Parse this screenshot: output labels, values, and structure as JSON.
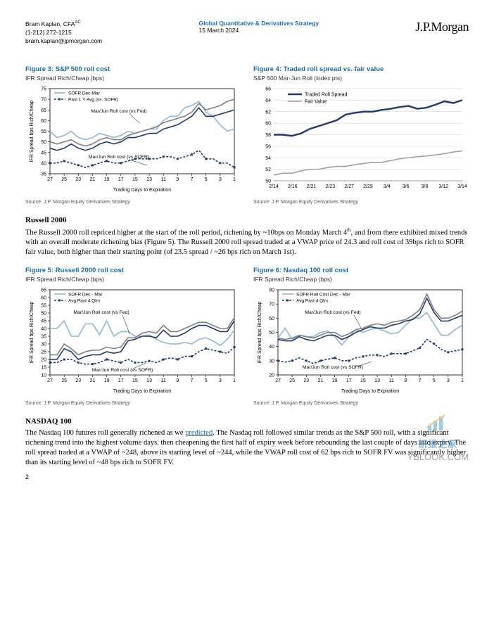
{
  "header": {
    "author": "Bram Kaplan, CFA",
    "author_sup": "AC",
    "phone": "(1-212) 272-1215",
    "email": "bram.kaplan@jpmorgan.com",
    "center1": "Global Quantitative & Derivatives Strategy",
    "center_date": "15 March 2024",
    "logo": "J.P.Morgan"
  },
  "fig3": {
    "title": "Figure 3: S&P 500 roll cost",
    "sub": "IFR Spread Rich/Cheap (bps)",
    "legend": [
      "SOFR Dec-Mar",
      "Past 1 Y Avg (vs. SOFR)"
    ],
    "annot1": "Mar/Jun Roll cost (vs Fed)",
    "annot2": "Mar/Jun Roll cost (vs SOFR)",
    "xlabel": "Trading Days to Expiration",
    "ylabel": "IFR Spread bps Rich/Cheap",
    "ylim": [
      35,
      75
    ],
    "ytick_step": 5,
    "xvals": [
      27,
      26,
      25,
      24,
      23,
      22,
      21,
      20,
      19,
      18,
      17,
      16,
      15,
      14,
      13,
      12,
      11,
      10,
      9,
      8,
      7,
      6,
      5,
      4,
      3,
      2,
      1
    ],
    "xticks": [
      27,
      25,
      23,
      21,
      19,
      17,
      15,
      13,
      11,
      9,
      7,
      5,
      3,
      1
    ],
    "series": {
      "light": [
        55,
        52,
        53,
        55,
        52,
        51,
        52,
        54,
        53,
        52,
        53,
        55,
        54,
        55,
        56,
        56,
        60,
        62,
        62,
        66,
        67,
        69,
        64,
        62,
        58,
        55,
        56
      ],
      "midgrey": [
        50,
        49,
        50,
        51,
        49,
        48,
        49,
        51,
        52,
        51,
        51,
        53,
        54,
        55,
        56,
        57,
        59,
        60,
        61,
        62,
        64,
        68,
        65,
        66,
        67,
        69,
        70
      ],
      "navy": [
        47,
        46,
        47,
        49,
        47,
        46,
        47,
        49,
        50,
        49,
        50,
        52,
        52,
        53,
        54,
        54,
        56,
        57,
        58,
        60,
        62,
        66,
        62,
        62,
        63,
        64,
        65
      ],
      "dash": [
        40,
        40,
        41,
        40,
        39,
        38,
        39,
        40,
        41,
        40,
        40,
        41,
        42,
        42,
        42,
        42,
        43,
        43,
        42,
        43,
        44,
        46,
        42,
        42,
        40,
        40,
        38
      ]
    },
    "colors": {
      "light": "#8fb7d6",
      "midgrey": "#808080",
      "navy": "#1f3a6e",
      "dash": "#1f3a6e"
    },
    "line_width": 1.6,
    "dash_pattern": "3,2",
    "title_fontsize": 9.5,
    "label_fontsize": 7,
    "tick_fontsize": 7,
    "bg": "#ffffff",
    "axis_color": "#000"
  },
  "fig4": {
    "title": "Figure 4: Traded roll spread vs. fair value",
    "sub": "S&P 500 Mar-Jun Roll (index pts)",
    "legend": [
      "Traded Roll Spread",
      "Fair Value"
    ],
    "ylim": [
      50,
      66
    ],
    "ytick_step": 2,
    "xticks": [
      "2/14",
      "2/16",
      "2/21",
      "2/23",
      "2/27",
      "2/29",
      "3/4",
      "3/6",
      "3/8",
      "3/12",
      "3/14"
    ],
    "n": 22,
    "series": {
      "traded": [
        58,
        58,
        57.8,
        58.2,
        59,
        59.5,
        60,
        60.5,
        61.5,
        61.8,
        62,
        62,
        62.3,
        62.5,
        62.8,
        63,
        62.5,
        62.7,
        63.2,
        63.8,
        63.5,
        64
      ],
      "fair": [
        51,
        51.3,
        51.3,
        51.7,
        52,
        52,
        52.3,
        52.5,
        52.5,
        52.8,
        53,
        53.2,
        53.2,
        53.5,
        53.8,
        54,
        54.2,
        54.3,
        54.5,
        54.7,
        55,
        55.2
      ]
    },
    "colors": {
      "traded": "#1f3a6e",
      "fair": "#a0a0a0"
    },
    "line_width_traded": 2.4,
    "line_width_fair": 1.6,
    "title_fontsize": 9.5,
    "label_fontsize": 7,
    "tick_fontsize": 7,
    "bg": "#ffffff",
    "axis_color": "#888"
  },
  "fig5": {
    "title": "Figure 5: Russell 2000 roll cost",
    "sub": "IFR Spread Rich/Cheap (bps)",
    "legend": [
      "SOFR Dec - Mar",
      "Avg Past 4 Qtrs"
    ],
    "annot1": "Mar/Jun Roll cost (vs Fed)",
    "annot2": "Mar/Jun Roll cost (vs SOFR)",
    "xlabel": "Trading Days to Expiration",
    "ylabel": "IFR Spread bps Rich/Cheap",
    "ylim": [
      10,
      65
    ],
    "ytick_step": 5,
    "xvals": [
      27,
      26,
      25,
      24,
      23,
      22,
      21,
      20,
      19,
      18,
      17,
      16,
      15,
      14,
      13,
      12,
      11,
      10,
      9,
      8,
      7,
      6,
      5,
      4,
      3,
      2,
      1
    ],
    "xticks": [
      27,
      25,
      23,
      21,
      19,
      17,
      15,
      13,
      11,
      9,
      7,
      5,
      3,
      1
    ],
    "series": {
      "light": [
        40,
        40,
        45,
        35,
        35,
        43,
        43,
        36,
        45,
        35,
        38,
        38,
        35,
        35,
        36,
        33,
        31,
        30,
        30,
        31,
        30,
        33,
        34,
        32,
        29,
        33,
        39
      ],
      "midgrey": [
        23,
        23,
        30,
        27,
        23,
        25,
        26,
        26,
        28,
        27,
        28,
        34,
        34,
        37,
        38,
        37,
        42,
        38,
        38,
        40,
        42,
        44,
        44,
        42,
        40,
        40,
        47
      ],
      "navy": [
        20,
        20,
        27,
        25,
        20,
        22,
        23,
        23,
        25,
        24,
        25,
        32,
        33,
        35,
        35,
        34,
        39,
        35,
        35,
        37,
        40,
        42,
        42,
        40,
        38,
        38,
        45
      ],
      "dash": [
        18,
        18,
        20,
        20,
        18,
        17,
        17,
        18,
        20,
        19,
        18,
        20,
        18,
        18,
        19,
        18,
        20,
        21,
        20,
        22,
        22,
        25,
        27,
        26,
        25,
        24,
        28
      ]
    },
    "colors": {
      "light": "#8fb7d6",
      "midgrey": "#808080",
      "navy": "#1f3a6e",
      "dash": "#1f3a6e"
    },
    "line_width": 1.6,
    "dash_pattern": "3,2",
    "title_fontsize": 9.5,
    "label_fontsize": 7,
    "tick_fontsize": 7,
    "bg": "#ffffff",
    "axis_color": "#000"
  },
  "fig6": {
    "title": "Figure 6: Nasdaq 100 roll cost",
    "sub": "IFR Spread Rich/Cheap (bps)",
    "legend": [
      "SOFR Roll Cost Dec - Mar",
      "Avg Past 4 Qtrs"
    ],
    "annot1": "Mar/Jun Roll cost (vs Fed)",
    "annot2": "Mar/Jun Roll cost (vs SOFR)",
    "xlabel": "Trading Days to Expiration",
    "ylabel": "IFR Spread bps Rich/Cheap",
    "ylim": [
      20,
      80
    ],
    "ytick_step": 10,
    "xvals": [
      27,
      26,
      25,
      24,
      23,
      22,
      21,
      20,
      19,
      18,
      17,
      16,
      15,
      14,
      13,
      12,
      11,
      10,
      9,
      8,
      7,
      6,
      5,
      4,
      3,
      2,
      1
    ],
    "xticks": [
      27,
      25,
      23,
      21,
      19,
      17,
      15,
      13,
      11,
      9,
      7,
      5,
      3,
      1
    ],
    "series": {
      "light": [
        46,
        53,
        45,
        48,
        47,
        47,
        50,
        51,
        47,
        41,
        47,
        52,
        50,
        52,
        53,
        51,
        49,
        50,
        55,
        60,
        60,
        64,
        56,
        48,
        48,
        52,
        55
      ],
      "midgrey": [
        46,
        45,
        46,
        48,
        47,
        46,
        48,
        50,
        50,
        47,
        49,
        52,
        53,
        55,
        56,
        55,
        57,
        58,
        59,
        62,
        66,
        77,
        66,
        60,
        60,
        62,
        65
      ],
      "navy": [
        45,
        44,
        44,
        47,
        45,
        44,
        46,
        48,
        48,
        45,
        47,
        50,
        52,
        54,
        53,
        53,
        55,
        56,
        58,
        59,
        63,
        74,
        64,
        58,
        58,
        60,
        62
      ],
      "dash": [
        30,
        29,
        30,
        32,
        30,
        28,
        30,
        31,
        32,
        30,
        30,
        32,
        33,
        34,
        34,
        33,
        35,
        35,
        35,
        37,
        39,
        45,
        42,
        38,
        36,
        37,
        38
      ]
    },
    "colors": {
      "light": "#8fb7d6",
      "midgrey": "#808080",
      "navy": "#1f3a6e",
      "dash": "#1f3a6e"
    },
    "line_width": 1.6,
    "dash_pattern": "3,2",
    "title_fontsize": 9.5,
    "label_fontsize": 7,
    "tick_fontsize": 7,
    "bg": "#ffffff",
    "axis_color": "#000"
  },
  "src": "Source: J.P. Morgan Equity Derivatives Strategy",
  "sec1": {
    "h": "Russell 2000",
    "p1a": "The Russell 2000 roll repriced higher at the start of the roll period, richening by ~10bps on Monday March 4",
    "p1sup": "th",
    "p1b": ", and from there exhibited mixed trends with an overall moderate richening bias (Figure 5). The Russell 2000 roll spread traded at a VWAP price of 24.3 and roll cost of 39bps rich to SOFR fair value, both higher than their starting point (of 23.5 spread / ~26 bps rich on March 1st)."
  },
  "sec2": {
    "h": "NASDAQ 100",
    "p1a": "The Nasdaq 100 futures roll generally richened as we ",
    "link": "predicted",
    "p1b": ". The Nasdaq roll followed similar trends as the S&P 500 roll, with a significant richening trend into the highest volume days, then cheapening the first half of expiry week before rebounding the last couple of days into expiry. The roll spread traded at a VWAP of ~248, above its starting level of ~244, while the VWAP roll cost of 62 bps rich to SOFR FV was significantly higher than its starting level of ~48 bps rich to SOFR FV."
  },
  "page": "2",
  "watermark": {
    "logo": "研报之家",
    "text": "YBLOOK.COM"
  }
}
